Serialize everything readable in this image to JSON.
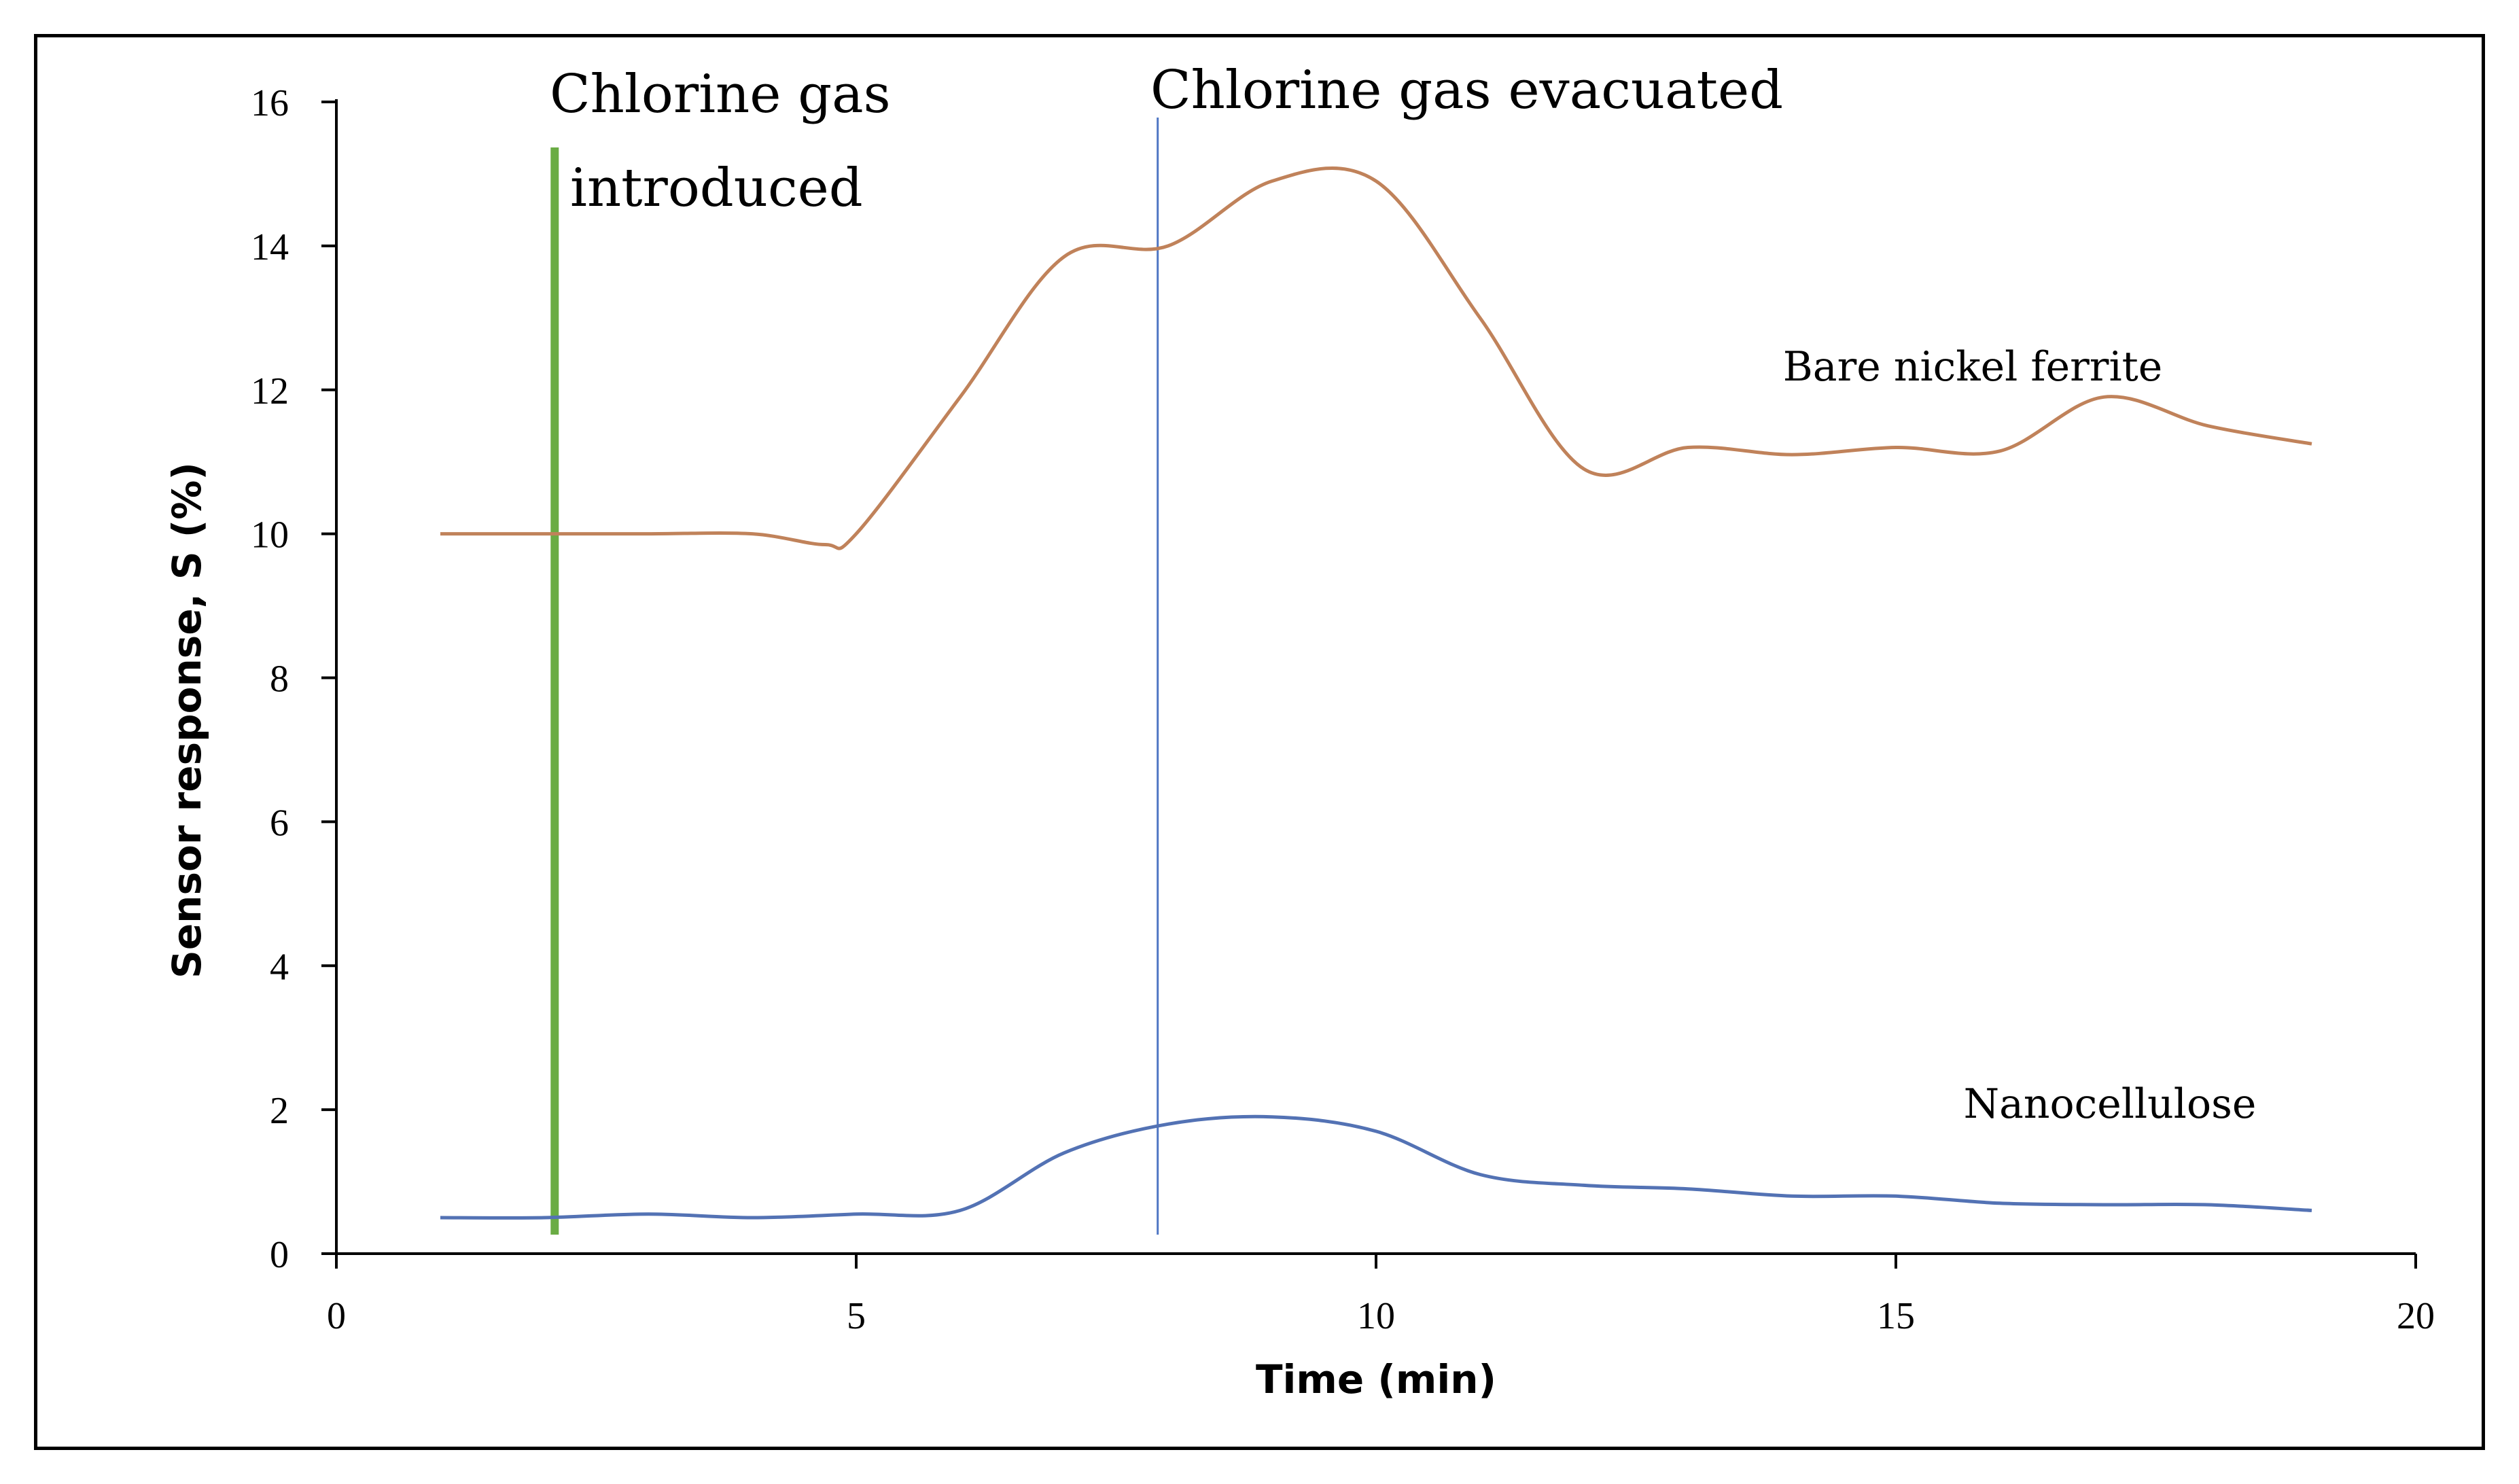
{
  "chart_data": {
    "type": "line",
    "title": "",
    "xlabel": "Time (min)",
    "ylabel": "Sensor response, S (%)",
    "xlim": [
      0,
      20
    ],
    "ylim": [
      0,
      16
    ],
    "x_ticks": [
      0,
      5,
      10,
      15,
      20
    ],
    "y_ticks": [
      0,
      2,
      4,
      6,
      8,
      10,
      12,
      14,
      16
    ],
    "grid": false,
    "series": [
      {
        "name": "Bare nickel ferrite",
        "color": "#c0825a",
        "points": [
          [
            1,
            10
          ],
          [
            2,
            10
          ],
          [
            3,
            10
          ],
          [
            4,
            10
          ],
          [
            4.7,
            9.85
          ],
          [
            5,
            10
          ],
          [
            6,
            11.9
          ],
          [
            7,
            13.85
          ],
          [
            8,
            14
          ],
          [
            9,
            14.9
          ],
          [
            10,
            14.9
          ],
          [
            11,
            13
          ],
          [
            12,
            10.9
          ],
          [
            13,
            11.2
          ],
          [
            14,
            11.1
          ],
          [
            15,
            11.2
          ],
          [
            16,
            11.15
          ],
          [
            17,
            11.9
          ],
          [
            18,
            11.5
          ],
          [
            19,
            11.25
          ]
        ]
      },
      {
        "name": "Nanocellulose",
        "color": "#5372b4",
        "points": [
          [
            1,
            0.5
          ],
          [
            2,
            0.5
          ],
          [
            3,
            0.55
          ],
          [
            4,
            0.5
          ],
          [
            5,
            0.55
          ],
          [
            6,
            0.6
          ],
          [
            7,
            1.4
          ],
          [
            8,
            1.8
          ],
          [
            9,
            1.9
          ],
          [
            10,
            1.7
          ],
          [
            11,
            1.1
          ],
          [
            12,
            0.95
          ],
          [
            13,
            0.9
          ],
          [
            14,
            0.8
          ],
          [
            15,
            0.8
          ],
          [
            16,
            0.7
          ],
          [
            17,
            0.68
          ],
          [
            18,
            0.68
          ],
          [
            19,
            0.6
          ]
        ]
      }
    ],
    "annotations": [
      {
        "name": "gas-introduced-marker",
        "x": 2.1,
        "color": "#6aac44",
        "lines": [
          "Chlorine gas",
          "introduced"
        ]
      },
      {
        "name": "gas-evacuated-marker",
        "x": 7.9,
        "color": "#4f76c4",
        "lines": [
          "Chlorine gas evacuated"
        ]
      }
    ],
    "series_labels": [
      "Bare nickel ferrite",
      "Nanocellulose"
    ]
  }
}
